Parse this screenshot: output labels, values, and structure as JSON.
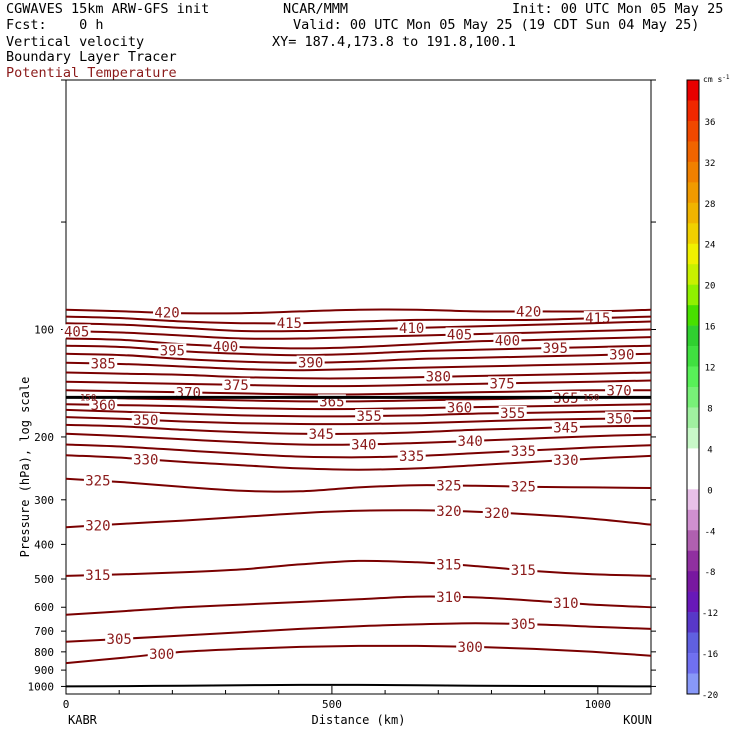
{
  "header": {
    "model": "CGWAVES 15km ARW-GFS init",
    "org": "NCAR/MMM",
    "init": "Init: 00 UTC Mon 05 May 25",
    "fcst": "Fcst:    0 h",
    "valid": "Valid: 00 UTC Mon 05 May 25 (19 CDT Sun 04 May 25)",
    "field1": "Vertical velocity",
    "xy": "XY= 187.4,173.8 to 191.8,100.1",
    "field2": "Boundary Layer Tracer",
    "field3": "Potential Temperature"
  },
  "colors": {
    "contour": "#7a0000",
    "contour_label": "#8b1a1a",
    "freezing_line": "#000000"
  },
  "colorbar": {
    "unit": "cm s",
    "unit_sup": "-1",
    "tick_labels": [
      "36",
      "32",
      "28",
      "24",
      "20",
      "16",
      "12",
      "8",
      "4",
      "0",
      "-4",
      "-8",
      "-12",
      "-16",
      "-20"
    ],
    "colors": [
      "#e80000",
      "#f02800",
      "#f04800",
      "#f06400",
      "#f08000",
      "#f09a00",
      "#f0b400",
      "#f0d000",
      "#f0f000",
      "#c8f000",
      "#90f000",
      "#48e000",
      "#30d030",
      "#40e040",
      "#58f058",
      "#78f078",
      "#a0f0a0",
      "#c8f8c8",
      "#ffffff",
      "#ffffff",
      "#e8c0e8",
      "#d090d0",
      "#b060b0",
      "#9030a0",
      "#7818a0",
      "#6818b8",
      "#5838c8",
      "#6060e0",
      "#7070f0",
      "#8898f8"
    ]
  },
  "chart_data": {
    "type": "contour-cross-section",
    "xlabel": "Distance (km)",
    "ylabel": "Pressure (hPa), log scale",
    "x_ticks": [
      "0",
      "500",
      "1000"
    ],
    "x_ends": {
      "left": "KABR",
      "right": "KOUN"
    },
    "xlim": [
      0,
      1100
    ],
    "y_ticks": [
      "100",
      "200",
      "300",
      "400",
      "500",
      "600",
      "700",
      "800",
      "900",
      "1000"
    ],
    "ylim": [
      1050,
      20
    ],
    "series": [
      {
        "theta": 420,
        "p": [
          88,
          89,
          90,
          90,
          89,
          88,
          88,
          89,
          89,
          89,
          88
        ],
        "labels_x": [
          190,
          870
        ]
      },
      {
        "theta": 415,
        "p": [
          92,
          93,
          95,
          96,
          96,
          95,
          94,
          94,
          94,
          93,
          92
        ],
        "labels_x": [
          420,
          1000
        ]
      },
      {
        "theta": 410,
        "p": [
          96,
          97,
          99,
          101,
          101,
          100,
          99,
          98,
          97,
          96,
          95
        ],
        "labels_x": [
          650
        ]
      },
      {
        "theta": 405,
        "p": [
          101,
          102,
          104,
          106,
          106,
          105,
          104,
          103,
          102,
          101,
          100
        ],
        "labels_x": [
          20,
          740
        ]
      },
      {
        "theta": 400,
        "p": [
          106,
          107,
          110,
          112,
          113,
          112,
          110,
          108,
          107,
          106,
          105
        ],
        "labels_x": [
          300,
          830
        ]
      },
      {
        "theta": 395,
        "p": [
          111,
          112,
          115,
          117,
          118,
          117,
          115,
          114,
          113,
          112,
          111
        ],
        "labels_x": [
          200,
          920
        ]
      },
      {
        "theta": 390,
        "p": [
          117,
          118,
          121,
          123,
          124,
          123,
          121,
          120,
          119,
          118,
          117
        ],
        "labels_x": [
          460,
          1045
        ]
      },
      {
        "theta": 385,
        "p": [
          124,
          125,
          127,
          129,
          130,
          129,
          128,
          127,
          126,
          125,
          124
        ],
        "labels_x": [
          70
        ]
      },
      {
        "theta": 380,
        "p": [
          132,
          133,
          134,
          136,
          137,
          137,
          136,
          135,
          134,
          133,
          132
        ],
        "labels_x": [
          700
        ]
      },
      {
        "theta": 375,
        "p": [
          140,
          141,
          142,
          143,
          144,
          144,
          143,
          142,
          141,
          140,
          139
        ],
        "labels_x": [
          320,
          820
        ]
      },
      {
        "theta": 370,
        "p": [
          148,
          149,
          150,
          151,
          152,
          152,
          151,
          150,
          149,
          148,
          148
        ],
        "labels_x": [
          230,
          1040
        ]
      },
      {
        "theta": 365,
        "p": [
          155,
          156,
          157,
          158,
          159,
          159,
          158,
          157,
          156,
          155,
          155
        ],
        "labels_x": [
          500,
          940
        ]
      },
      {
        "theta": 360,
        "p": [
          162,
          163,
          164,
          166,
          167,
          167,
          166,
          165,
          164,
          163,
          162
        ],
        "labels_x": [
          70,
          740
        ]
      },
      {
        "theta": 355,
        "p": [
          168,
          170,
          172,
          174,
          175,
          175,
          174,
          172,
          171,
          170,
          169
        ],
        "labels_x": [
          570,
          840
        ]
      },
      {
        "theta": 350,
        "p": [
          176,
          178,
          181,
          183,
          184,
          184,
          183,
          181,
          179,
          178,
          177
        ],
        "labels_x": [
          150,
          1040
        ]
      },
      {
        "theta": 345,
        "p": [
          185,
          187,
          191,
          194,
          196,
          196,
          194,
          191,
          189,
          187,
          186
        ],
        "labels_x": [
          480,
          940
        ]
      },
      {
        "theta": 340,
        "p": [
          196,
          199,
          203,
          207,
          210,
          210,
          208,
          205,
          202,
          199,
          197
        ],
        "labels_x": [
          560,
          760
        ]
      },
      {
        "theta": 335,
        "p": [
          210,
          213,
          218,
          223,
          227,
          228,
          226,
          222,
          218,
          214,
          211
        ],
        "labels_x": [
          650,
          860
        ]
      },
      {
        "theta": 330,
        "p": [
          225,
          229,
          235,
          240,
          245,
          247,
          245,
          240,
          235,
          230,
          226
        ],
        "labels_x": [
          150,
          940
        ]
      },
      {
        "theta": 325,
        "p": [
          262,
          268,
          276,
          283,
          284,
          277,
          273,
          274,
          276,
          277,
          278
        ],
        "labels_x": [
          60,
          720,
          860
        ]
      },
      {
        "theta": 320,
        "p": [
          358,
          350,
          343,
          335,
          327,
          322,
          321,
          324,
          330,
          339,
          352
        ],
        "labels_x": [
          60,
          720,
          810
        ]
      },
      {
        "theta": 315,
        "p": [
          490,
          485,
          479,
          470,
          455,
          445,
          449,
          460,
          475,
          485,
          490
        ],
        "labels_x": [
          60,
          720,
          860
        ]
      },
      {
        "theta": 310,
        "p": [
          630,
          615,
          600,
          590,
          580,
          570,
          560,
          563,
          575,
          590,
          600
        ],
        "labels_x": [
          720,
          940
        ]
      },
      {
        "theta": 305,
        "p": [
          750,
          735,
          720,
          705,
          690,
          678,
          670,
          665,
          670,
          680,
          690
        ],
        "labels_x": [
          100,
          860
        ]
      },
      {
        "theta": 300,
        "p": [
          860,
          830,
          800,
          785,
          775,
          770,
          770,
          775,
          785,
          800,
          820
        ],
        "labels_x": [
          180,
          760
        ]
      }
    ],
    "sample_x": [
      0,
      110,
      220,
      330,
      440,
      550,
      660,
      770,
      880,
      990,
      1100
    ],
    "small_labels": [
      {
        "text": "150",
        "x_side": "left"
      },
      {
        "text": "150",
        "x_side": "right"
      }
    ],
    "thick_line_p": 155,
    "surface_line_p": [
      1000,
      998,
      995,
      992,
      990,
      990,
      992,
      995,
      997,
      998,
      1000
    ]
  }
}
